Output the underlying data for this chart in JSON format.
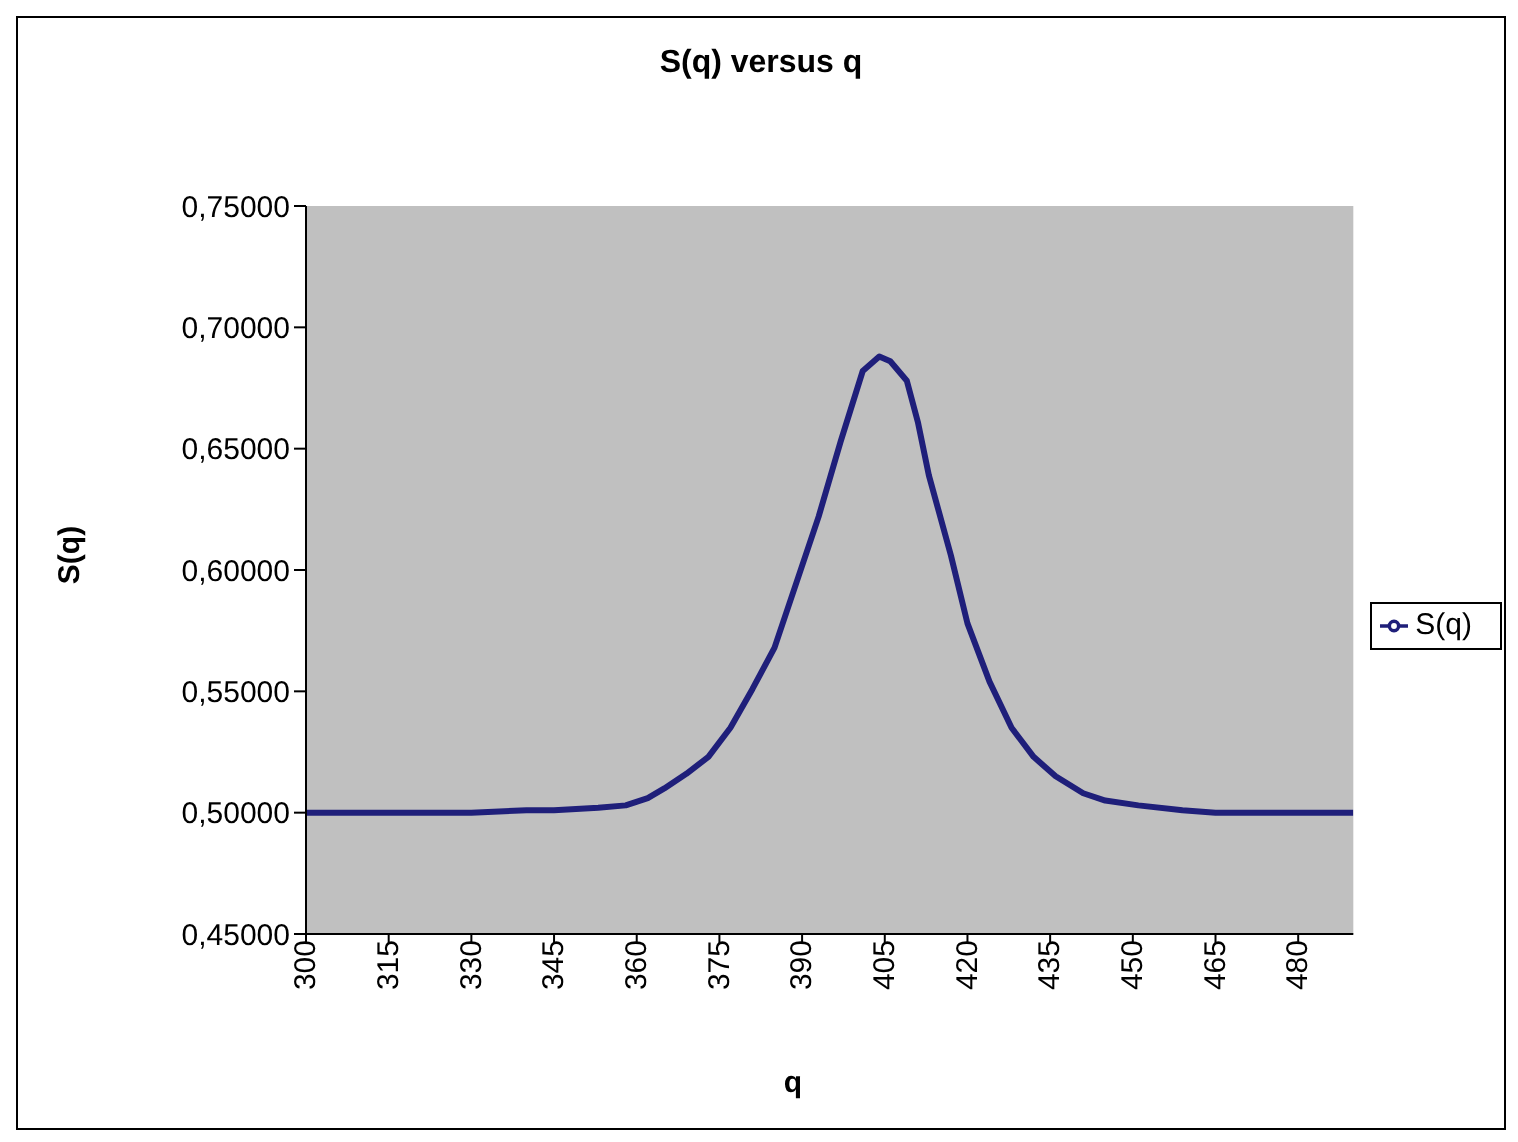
{
  "chart_data": {
    "type": "line",
    "title": "S(q) versus q",
    "xlabel": "q",
    "ylabel": "S(q)",
    "x": [
      300,
      310,
      320,
      330,
      340,
      345,
      353,
      358,
      362,
      365,
      369,
      373,
      377,
      381,
      385,
      389,
      393,
      397,
      401,
      404,
      406,
      409,
      411,
      413,
      417,
      420,
      424,
      428,
      432,
      436,
      441,
      445,
      451,
      459,
      465,
      475,
      490
    ],
    "series": [
      {
        "name": "S(q)",
        "color": "#1f1f7a",
        "values": [
          0.5,
          0.5,
          0.5,
          0.5,
          0.501,
          0.501,
          0.502,
          0.503,
          0.506,
          0.51,
          0.516,
          0.523,
          0.535,
          0.551,
          0.568,
          0.595,
          0.622,
          0.653,
          0.682,
          0.688,
          0.686,
          0.678,
          0.661,
          0.639,
          0.606,
          0.578,
          0.554,
          0.535,
          0.523,
          0.515,
          0.508,
          0.505,
          0.503,
          0.501,
          0.5,
          0.5,
          0.5
        ]
      }
    ],
    "xlim": [
      300,
      490
    ],
    "xticks": [
      300,
      315,
      330,
      345,
      360,
      375,
      390,
      405,
      420,
      435,
      450,
      465,
      480
    ],
    "ylim": [
      0.45,
      0.75
    ],
    "yticks": [
      {
        "value": 0.45,
        "label": "0,45000"
      },
      {
        "value": 0.5,
        "label": "0,50000"
      },
      {
        "value": 0.55,
        "label": "0,55000"
      },
      {
        "value": 0.6,
        "label": "0,60000"
      },
      {
        "value": 0.65,
        "label": "0,65000"
      },
      {
        "value": 0.7,
        "label": "0,70000"
      },
      {
        "value": 0.75,
        "label": "0,75000"
      }
    ],
    "grid": false,
    "legend": "right",
    "marker": "none",
    "line_style": "solid"
  }
}
